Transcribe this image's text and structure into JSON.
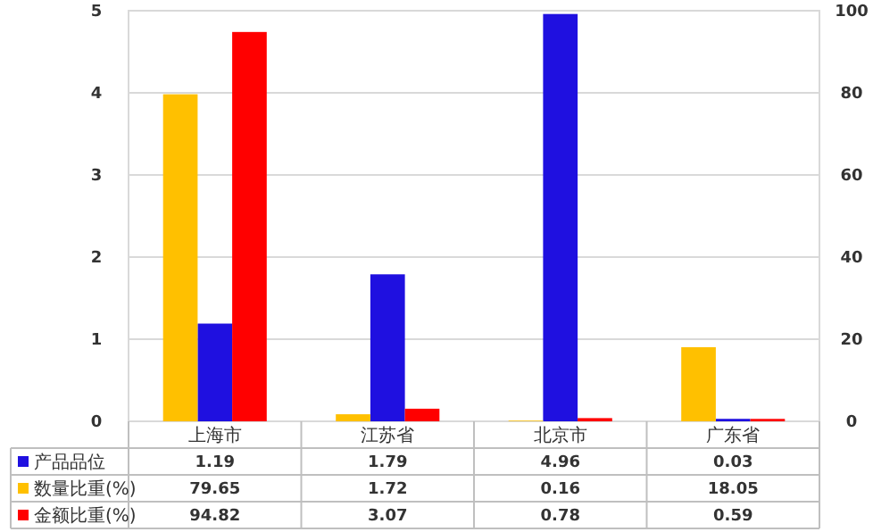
{
  "chart_data": {
    "type": "bar",
    "categories": [
      "上海市",
      "江苏省",
      "北京市",
      "广东省"
    ],
    "series": [
      {
        "name": "产品品位",
        "color": "#1f10e0",
        "values": [
          1.19,
          1.79,
          4.96,
          0.03
        ],
        "axis": "y"
      },
      {
        "name": "数量比重(%)",
        "color": "#ffc000",
        "values": [
          79.65,
          1.72,
          0.16,
          18.05
        ],
        "axis": "y2"
      },
      {
        "name": "金额比重(%)",
        "color": "#ff0000",
        "values": [
          94.82,
          3.07,
          0.78,
          0.59
        ],
        "axis": "y2"
      }
    ],
    "ylim": [
      0,
      5
    ],
    "yticks": [
      0,
      1,
      2,
      3,
      4,
      5
    ],
    "y2lim": [
      0,
      100
    ],
    "y2ticks": [
      0,
      20,
      40,
      60,
      80,
      100
    ],
    "grid": "y",
    "data_labels": true,
    "legend": "bottom left"
  }
}
